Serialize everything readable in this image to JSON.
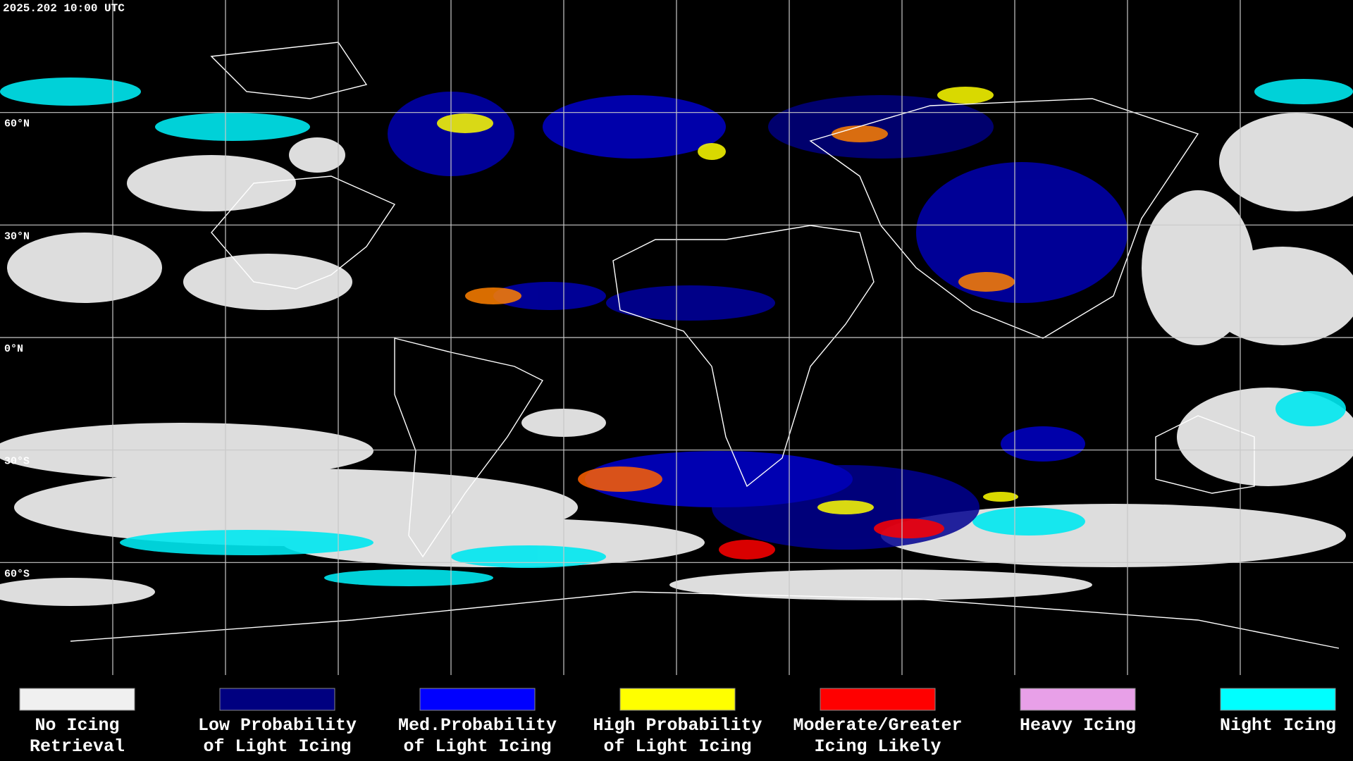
{
  "timestamp": "2025.202 10:00 UTC",
  "latitude_labels": [
    "60°N",
    "30°N",
    "0°N",
    "30°S",
    "60°S"
  ],
  "legend": [
    {
      "lines": [
        "No Icing",
        "Retrieval"
      ],
      "color": "#f0f0f0"
    },
    {
      "lines": [
        "Low Probability",
        "of Light Icing"
      ],
      "color": "#000080"
    },
    {
      "lines": [
        "Med.Probability",
        "of Light Icing"
      ],
      "color": "#0000ff"
    },
    {
      "lines": [
        "High Probability",
        "of Light Icing"
      ],
      "color": "#ffff00"
    },
    {
      "lines": [
        "Moderate/Greater",
        "Icing Likely"
      ],
      "color": "#ff0000"
    },
    {
      "lines": [
        "Heavy Icing"
      ],
      "color": "#e8a0e8"
    },
    {
      "lines": [
        "Night Icing"
      ],
      "color": "#00ffff"
    }
  ]
}
